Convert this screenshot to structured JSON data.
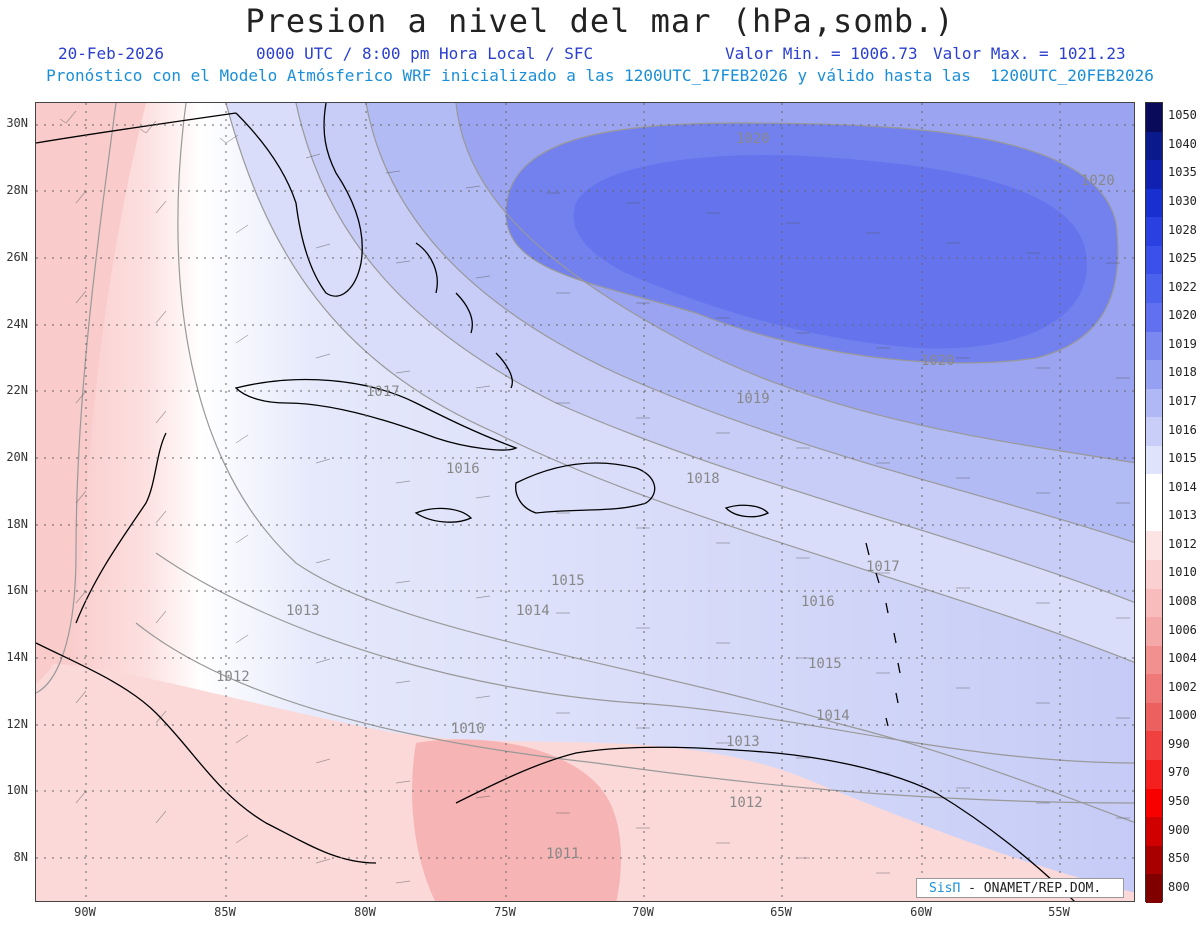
{
  "header": {
    "title": "Presion a nivel del mar (hPa,somb.)",
    "date": "20-Feb-2026",
    "time": "0000 UTC / 8:00 pm Hora Local / SFC",
    "valmin": "Valor Min. = 1006.73",
    "valmax": "Valor Max. = 1021.23",
    "forecast": "Pronóstico con el Modelo Atmósferico WRF inicializado a las 1200UTC_17FEB2026 y válido hasta las  1200UTC_20FEB2026"
  },
  "axes": {
    "lat_labels": [
      "30N",
      "28N",
      "26N",
      "24N",
      "22N",
      "20N",
      "18N",
      "16N",
      "14N",
      "12N",
      "10N",
      "8N"
    ],
    "lon_labels": [
      "90W",
      "85W",
      "80W",
      "75W",
      "70W",
      "65W",
      "60W",
      "55W"
    ]
  },
  "colorbar": {
    "levels": [
      "1050",
      "1040",
      "1035",
      "1030",
      "1028",
      "1025",
      "1022",
      "1020",
      "1019",
      "1018",
      "1017",
      "1016",
      "1015",
      "1014",
      "1013",
      "1012",
      "1010",
      "1008",
      "1006",
      "1004",
      "1002",
      "1000",
      "990",
      "970",
      "950",
      "900",
      "850",
      "800"
    ],
    "colors": [
      "#0a0a5a",
      "#0a1a8a",
      "#1020b0",
      "#1830d0",
      "#2a40e0",
      "#3a50e8",
      "#4c62ec",
      "#6070ee",
      "#7a88f0",
      "#95a0f2",
      "#b0b8f5",
      "#c8cef8",
      "#dfe3fb",
      "#ffffff",
      "#ffffff",
      "#fde4e4",
      "#fbd0d0",
      "#f8bcbc",
      "#f5a8a8",
      "#f29090",
      "#ef7878",
      "#ec6060",
      "#f04040",
      "#f42020",
      "#f80000",
      "#d00000",
      "#a80000",
      "#800000"
    ]
  },
  "contour_labels": [
    "1020",
    "1020",
    "1020",
    "1019",
    "1018",
    "1017",
    "1017",
    "1016",
    "1016",
    "1015",
    "1015",
    "1014",
    "1014",
    "1013",
    "1013",
    "1012",
    "1012",
    "1010",
    "1011"
  ],
  "credit": {
    "sis": "SisΠ",
    "org": "- ONAMET/REP.DOM."
  }
}
